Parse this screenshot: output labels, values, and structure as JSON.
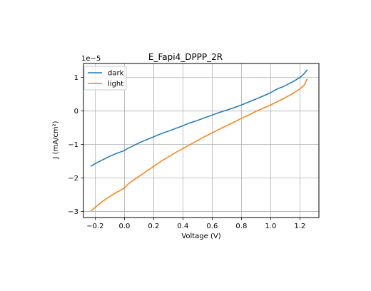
{
  "chart_data": {
    "type": "line",
    "title": "E_Fapi4_DPPP_2R",
    "xlabel": "Voltage (V)",
    "ylabel": "J (mA/cm²)",
    "y_multiplier_label": "1e−5",
    "xlim": [
      -0.28,
      1.33
    ],
    "ylim": [
      -3.18,
      1.42
    ],
    "x_ticks": [
      -0.2,
      0.0,
      0.2,
      0.4,
      0.6,
      0.8,
      1.0,
      1.2
    ],
    "x_tick_labels": [
      "−0.2",
      "0.0",
      "0.2",
      "0.4",
      "0.6",
      "0.8",
      "1.0",
      "1.2"
    ],
    "y_ticks": [
      -3,
      -2,
      -1,
      0,
      1
    ],
    "y_tick_labels": [
      "−3",
      "−2",
      "−1",
      "0",
      "1"
    ],
    "grid": true,
    "legend_position": "top-left",
    "series": [
      {
        "name": "dark",
        "color": "#1f77b4",
        "x": [
          -0.23,
          -0.2,
          -0.15,
          -0.1,
          -0.05,
          0.0,
          0.02,
          0.05,
          0.1,
          0.15,
          0.2,
          0.25,
          0.3,
          0.35,
          0.4,
          0.45,
          0.5,
          0.55,
          0.6,
          0.65,
          0.7,
          0.75,
          0.8,
          0.85,
          0.9,
          0.95,
          1.0,
          1.05,
          1.08,
          1.1,
          1.15,
          1.2,
          1.23,
          1.25
        ],
        "y": [
          -1.65,
          -1.57,
          -1.46,
          -1.35,
          -1.26,
          -1.18,
          -1.12,
          -1.06,
          -0.95,
          -0.86,
          -0.77,
          -0.68,
          -0.6,
          -0.52,
          -0.44,
          -0.35,
          -0.28,
          -0.2,
          -0.12,
          -0.04,
          0.03,
          0.1,
          0.18,
          0.27,
          0.36,
          0.45,
          0.55,
          0.67,
          0.72,
          0.76,
          0.87,
          1.0,
          1.12,
          1.23
        ]
      },
      {
        "name": "light",
        "color": "#ff7f0e",
        "x": [
          -0.23,
          -0.2,
          -0.15,
          -0.1,
          -0.05,
          0.0,
          0.02,
          0.05,
          0.1,
          0.15,
          0.2,
          0.25,
          0.3,
          0.35,
          0.4,
          0.45,
          0.5,
          0.55,
          0.6,
          0.65,
          0.7,
          0.75,
          0.8,
          0.85,
          0.9,
          0.95,
          1.0,
          1.05,
          1.1,
          1.15,
          1.2,
          1.23,
          1.25
        ],
        "y": [
          -2.98,
          -2.88,
          -2.7,
          -2.55,
          -2.42,
          -2.3,
          -2.2,
          -2.1,
          -1.95,
          -1.8,
          -1.65,
          -1.5,
          -1.37,
          -1.24,
          -1.12,
          -1.0,
          -0.88,
          -0.76,
          -0.65,
          -0.54,
          -0.43,
          -0.33,
          -0.22,
          -0.12,
          -0.01,
          0.09,
          0.18,
          0.29,
          0.4,
          0.52,
          0.66,
          0.78,
          0.96
        ]
      }
    ]
  }
}
